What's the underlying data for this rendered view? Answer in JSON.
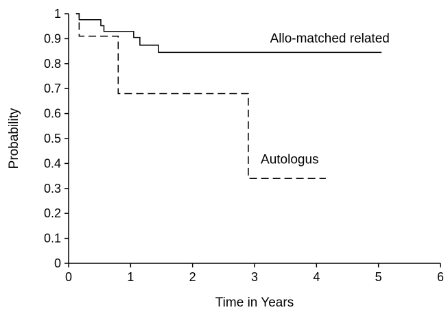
{
  "chart_data": {
    "type": "line",
    "title": "",
    "xlabel": "Time in Years",
    "ylabel": "Probability",
    "xlim": [
      0,
      6
    ],
    "ylim": [
      0,
      1
    ],
    "x_ticks": [
      0,
      1,
      2,
      3,
      4,
      5,
      6
    ],
    "y_ticks": [
      0,
      0.1,
      0.2,
      0.3,
      0.4,
      0.5,
      0.6,
      0.7,
      0.8,
      0.9,
      1
    ],
    "x_tick_labels": [
      "0",
      "1",
      "2",
      "3",
      "4",
      "5",
      "6"
    ],
    "y_tick_labels": [
      "0",
      "0.1",
      "0.2",
      "0.3",
      "0.4",
      "0.5",
      "0.6",
      "0.7",
      "0.8",
      "0.9",
      "1"
    ],
    "grid": false,
    "legend": "none",
    "series": [
      {
        "name": "Allo-matched related",
        "line_style": "solid",
        "color": "#000000",
        "step": true,
        "x": [
          0.12,
          0.17,
          0.52,
          0.57,
          1.05,
          1.15,
          1.45,
          5.05
        ],
        "y": [
          1.0,
          0.976,
          0.952,
          0.929,
          0.905,
          0.874,
          0.845,
          0.845
        ]
      },
      {
        "name": "Autologus",
        "line_style": "dashed",
        "color": "#000000",
        "step": true,
        "x": [
          0.12,
          0.17,
          0.8,
          2.9,
          4.15
        ],
        "y": [
          1.0,
          0.91,
          0.68,
          0.34,
          0.34
        ]
      }
    ],
    "annotations": [
      {
        "text": "Allo-matched related",
        "x": 3.25,
        "y": 0.885
      },
      {
        "text": "Autologus",
        "x": 3.1,
        "y": 0.4
      }
    ]
  }
}
